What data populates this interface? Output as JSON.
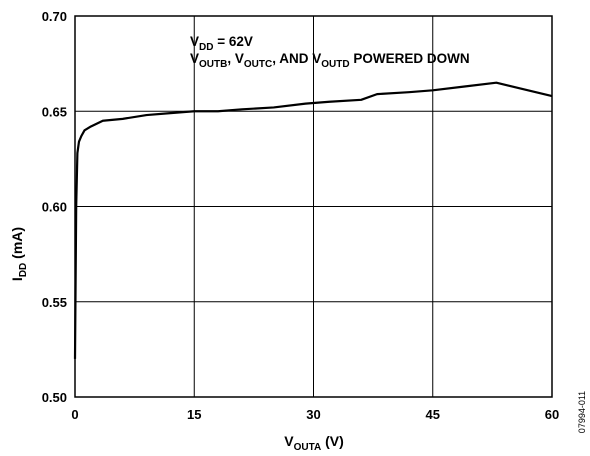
{
  "chart_data": {
    "type": "line",
    "xlabel": {
      "main": "V",
      "sub": "OUTA",
      "rest": " (V)"
    },
    "ylabel": {
      "main": "I",
      "sub": "DD",
      "rest": " (mA)"
    },
    "xlim": [
      0,
      60
    ],
    "ylim": [
      0.5,
      0.7
    ],
    "x_ticks": [
      "0",
      "15",
      "30",
      "45",
      "60"
    ],
    "y_ticks": [
      "0.50",
      "0.55",
      "0.60",
      "0.65",
      "0.70"
    ],
    "grid": true,
    "annotation": {
      "line1": {
        "main": "V",
        "sub": "DD",
        "rest": " = 62V"
      },
      "line2": {
        "a_main": "V",
        "a_sub": "OUTB",
        "a_sep": ", ",
        "b_main": "V",
        "b_sub": "OUTC",
        "b_sep": ", AND ",
        "c_main": "V",
        "c_sub": "OUTD",
        "c_rest": " POWERED DOWN"
      }
    },
    "figure_id": "07994-011",
    "series": [
      {
        "color": "#000000",
        "x": [
          0.0,
          0.15,
          0.3,
          0.5,
          0.8,
          1.2,
          2.0,
          3.5,
          6.0,
          9.0,
          12.0,
          15.0,
          18.0,
          21.0,
          25.0,
          29.0,
          32.0,
          36.0,
          38.0,
          42.0,
          45.0,
          49.0,
          53.0,
          56.0,
          60.0
        ],
        "y": [
          0.52,
          0.6,
          0.628,
          0.634,
          0.637,
          0.64,
          0.642,
          0.645,
          0.646,
          0.648,
          0.649,
          0.65,
          0.65,
          0.651,
          0.652,
          0.654,
          0.655,
          0.656,
          0.659,
          0.66,
          0.661,
          0.663,
          0.665,
          0.662,
          0.658
        ]
      }
    ]
  }
}
